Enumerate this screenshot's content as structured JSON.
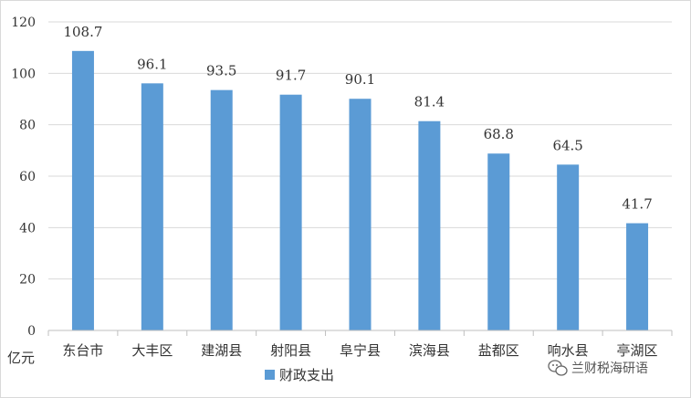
{
  "chart_data": {
    "type": "bar",
    "categories": [
      "东台市",
      "大丰区",
      "建湖县",
      "射阳县",
      "阜宁县",
      "滨海县",
      "盐都区",
      "响水县",
      "亭湖区"
    ],
    "series": [
      {
        "name": "财政支出",
        "values": [
          108.7,
          96.1,
          93.5,
          91.7,
          90.1,
          81.4,
          68.8,
          64.5,
          41.7
        ],
        "labels": [
          "108.7",
          "96.1",
          "93.5",
          "91.7",
          "90.1",
          "81.4",
          "68.8",
          "64.5",
          "41.7"
        ]
      }
    ],
    "ylabel": "亿元",
    "ylim": [
      0,
      120
    ],
    "yticks": [
      0,
      20,
      40,
      60,
      80,
      100,
      120
    ],
    "grid": true,
    "legend": "bottom-left",
    "bar_color": "#5b9bd5",
    "grid_color": "#d9d9d9"
  },
  "watermark": {
    "text": "兰财税海研语",
    "icon": "wechat-icon"
  }
}
